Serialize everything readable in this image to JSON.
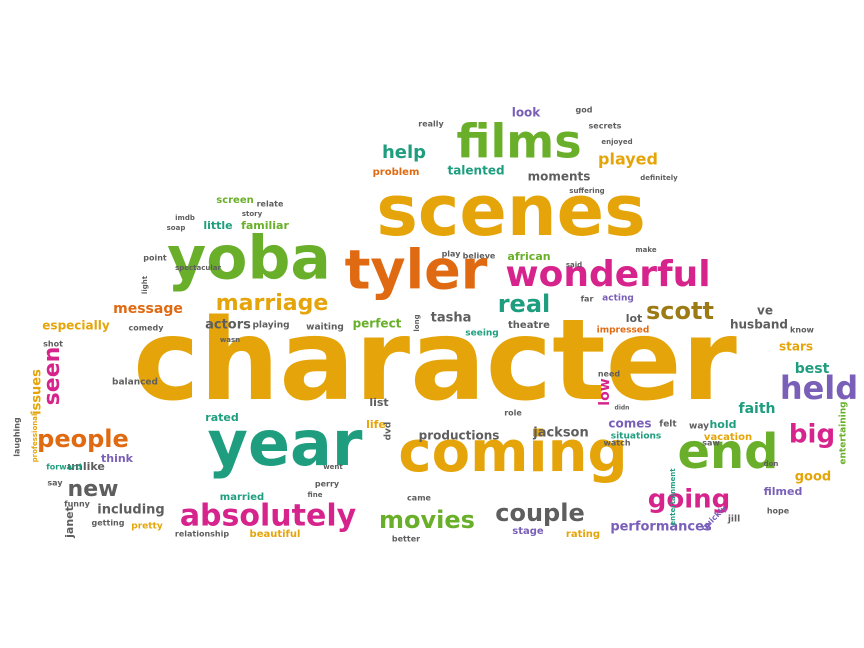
{
  "palette": {
    "gold": "#E5A50A",
    "green": "#6AAF2A",
    "teal": "#1F9E7F",
    "orange": "#E06A12",
    "magenta": "#D6248C",
    "purple": "#7A5FB8",
    "gray": "#5E5E5E",
    "brown": "#9C7A16"
  },
  "words": [
    {
      "text": "character",
      "color": "gold"
    },
    {
      "text": "scenes",
      "color": "gold"
    },
    {
      "text": "coming",
      "color": "gold"
    },
    {
      "text": "year",
      "color": "teal"
    },
    {
      "text": "yoba",
      "color": "green"
    },
    {
      "text": "tyler",
      "color": "orange"
    },
    {
      "text": "films",
      "color": "green"
    },
    {
      "text": "wonderful",
      "color": "magenta"
    },
    {
      "text": "end",
      "color": "green"
    },
    {
      "text": "absolutely",
      "color": "magenta"
    },
    {
      "text": "held",
      "color": "purple"
    },
    {
      "text": "big",
      "color": "magenta"
    },
    {
      "text": "people",
      "color": "orange"
    },
    {
      "text": "marriage",
      "color": "gold"
    },
    {
      "text": "movies",
      "color": "green"
    },
    {
      "text": "couple",
      "color": "gray"
    },
    {
      "text": "going",
      "color": "magenta"
    },
    {
      "text": "scott",
      "color": "brown"
    },
    {
      "text": "real",
      "color": "teal"
    },
    {
      "text": "seen",
      "color": "magenta"
    },
    {
      "text": "new",
      "color": "gray"
    },
    {
      "text": "help",
      "color": "teal"
    },
    {
      "text": "played",
      "color": "gold"
    },
    {
      "text": "message",
      "color": "orange"
    },
    {
      "text": "actors",
      "color": "gray"
    },
    {
      "text": "perfect",
      "color": "green"
    },
    {
      "text": "tasha",
      "color": "gray"
    },
    {
      "text": "moments",
      "color": "gray"
    },
    {
      "text": "talented",
      "color": "teal"
    },
    {
      "text": "look",
      "color": "purple"
    },
    {
      "text": "faith",
      "color": "teal"
    },
    {
      "text": "best",
      "color": "teal"
    },
    {
      "text": "stars",
      "color": "gold"
    },
    {
      "text": "good",
      "color": "gold"
    },
    {
      "text": "filmed",
      "color": "purple"
    },
    {
      "text": "husband",
      "color": "gray"
    },
    {
      "text": "ve",
      "color": "gray"
    },
    {
      "text": "lot",
      "color": "gray"
    },
    {
      "text": "low",
      "color": "magenta"
    },
    {
      "text": "productions",
      "color": "gray"
    },
    {
      "text": "jackson",
      "color": "gray"
    },
    {
      "text": "comes",
      "color": "purple"
    },
    {
      "text": "hold",
      "color": "teal"
    },
    {
      "text": "performances",
      "color": "purple"
    },
    {
      "text": "stage",
      "color": "purple"
    },
    {
      "text": "rating",
      "color": "gold"
    },
    {
      "text": "beautiful",
      "color": "gold"
    },
    {
      "text": "married",
      "color": "teal"
    },
    {
      "text": "including",
      "color": "gray"
    },
    {
      "text": "unlike",
      "color": "gray"
    },
    {
      "text": "think",
      "color": "purple"
    },
    {
      "text": "issues",
      "color": "gold"
    },
    {
      "text": "janet",
      "color": "gray"
    },
    {
      "text": "especially",
      "color": "gold"
    },
    {
      "text": "list",
      "color": "gray"
    },
    {
      "text": "rated",
      "color": "teal"
    },
    {
      "text": "life",
      "color": "gold"
    },
    {
      "text": "dvd",
      "color": "gray"
    },
    {
      "text": "little",
      "color": "teal"
    },
    {
      "text": "familiar",
      "color": "green"
    },
    {
      "text": "screen",
      "color": "green"
    },
    {
      "text": "problem",
      "color": "orange"
    },
    {
      "text": "african",
      "color": "green"
    },
    {
      "text": "playing",
      "color": "gray"
    },
    {
      "text": "waiting",
      "color": "gray"
    },
    {
      "text": "theatre",
      "color": "gray"
    },
    {
      "text": "seeing",
      "color": "teal"
    },
    {
      "text": "impressed",
      "color": "orange"
    },
    {
      "text": "acting",
      "color": "purple"
    },
    {
      "text": "need",
      "color": "gray"
    },
    {
      "text": "watch",
      "color": "gray"
    },
    {
      "text": "situations",
      "color": "teal"
    },
    {
      "text": "felt",
      "color": "gray"
    },
    {
      "text": "way",
      "color": "gray"
    },
    {
      "text": "saw",
      "color": "gray"
    },
    {
      "text": "vacation",
      "color": "gold"
    },
    {
      "text": "entertaining",
      "color": "green"
    },
    {
      "text": "entertainment",
      "color": "teal"
    },
    {
      "text": "quickly",
      "color": "purple"
    },
    {
      "text": "jill",
      "color": "gray"
    },
    {
      "text": "hope",
      "color": "gray"
    },
    {
      "text": "came",
      "color": "gray"
    },
    {
      "text": "better",
      "color": "gray"
    },
    {
      "text": "relationship",
      "color": "gray"
    },
    {
      "text": "pretty",
      "color": "gold"
    },
    {
      "text": "getting",
      "color": "gray"
    },
    {
      "text": "funny",
      "color": "gray"
    },
    {
      "text": "say",
      "color": "gray"
    },
    {
      "text": "forward",
      "color": "teal"
    },
    {
      "text": "laughing",
      "color": "gray"
    },
    {
      "text": "professional",
      "color": "gold"
    },
    {
      "text": "shot",
      "color": "gray"
    },
    {
      "text": "balanced",
      "color": "gray"
    },
    {
      "text": "wasn",
      "color": "gray"
    },
    {
      "text": "comedy",
      "color": "gray"
    },
    {
      "text": "spectacular",
      "color": "gray"
    },
    {
      "text": "point",
      "color": "gray"
    },
    {
      "text": "light",
      "color": "gray"
    },
    {
      "text": "imdb",
      "color": "gray"
    },
    {
      "text": "soap",
      "color": "gray"
    },
    {
      "text": "story",
      "color": "gray"
    },
    {
      "text": "relate",
      "color": "gray"
    },
    {
      "text": "play",
      "color": "gray"
    },
    {
      "text": "believe",
      "color": "gray"
    },
    {
      "text": "said",
      "color": "gray"
    },
    {
      "text": "far",
      "color": "gray"
    },
    {
      "text": "make",
      "color": "gray"
    },
    {
      "text": "know",
      "color": "gray"
    },
    {
      "text": "suffering",
      "color": "gray"
    },
    {
      "text": "definitely",
      "color": "gray"
    },
    {
      "text": "enjoyed",
      "color": "gray"
    },
    {
      "text": "secrets",
      "color": "gray"
    },
    {
      "text": "god",
      "color": "gray"
    },
    {
      "text": "really",
      "color": "gray"
    },
    {
      "text": "long",
      "color": "gray"
    },
    {
      "text": "role",
      "color": "gray"
    },
    {
      "text": "went",
      "color": "gray"
    },
    {
      "text": "perry",
      "color": "gray"
    },
    {
      "text": "fine",
      "color": "gray"
    },
    {
      "text": "don",
      "color": "gray"
    },
    {
      "text": "didn",
      "color": "gray"
    }
  ]
}
